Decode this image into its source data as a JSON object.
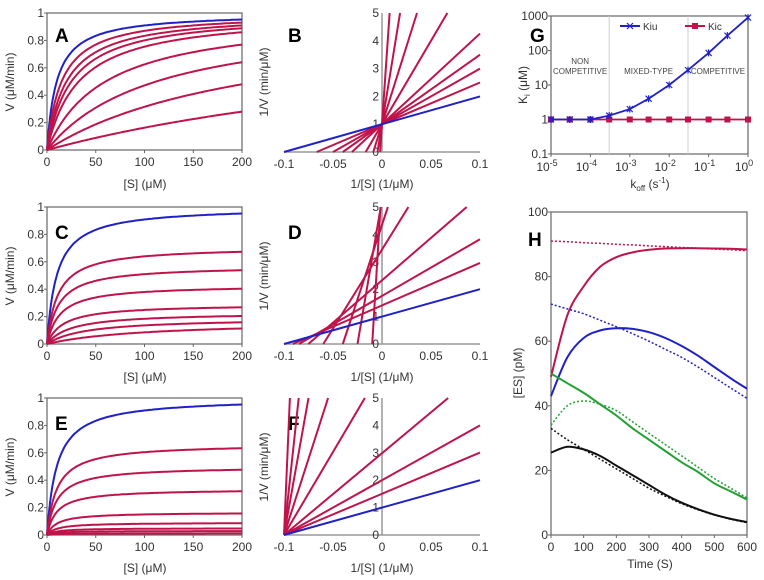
{
  "colors": {
    "control": "#2020c8",
    "inhibited": "#c0134a",
    "green": "#22a032",
    "black": "#111111",
    "frame": "#666666"
  },
  "chart_data": [
    {
      "id": "A",
      "panel_label": "A",
      "type": "line",
      "kind": "michaelis-menten",
      "xlabel": "[S] (μM)",
      "ylabel": "V (μM/min)",
      "xlim": [
        0,
        200
      ],
      "ylim": [
        0,
        1
      ],
      "xticks": [
        "0",
        "50",
        "100",
        "150",
        "200"
      ],
      "yticks": [
        "0",
        "0.2",
        "0.4",
        "0.6",
        "0.8",
        "1"
      ],
      "curves": [
        {
          "Vmax": 1,
          "Km": 10,
          "color": "control"
        },
        {
          "Vmax": 1,
          "Km": 15,
          "color": "inhibited"
        },
        {
          "Vmax": 1,
          "Km": 20,
          "color": "inhibited"
        },
        {
          "Vmax": 1,
          "Km": 25,
          "color": "inhibited"
        },
        {
          "Vmax": 1,
          "Km": 32.6,
          "color": "inhibited"
        },
        {
          "Vmax": 1,
          "Km": 60,
          "color": "inhibited"
        },
        {
          "Vmax": 1,
          "Km": 112,
          "color": "inhibited"
        },
        {
          "Vmax": 1,
          "Km": 217,
          "color": "inhibited"
        },
        {
          "Vmax": 1,
          "Km": 514,
          "color": "inhibited"
        }
      ]
    },
    {
      "id": "B",
      "panel_label": "B",
      "type": "line",
      "kind": "lineweaver-burk",
      "xlabel": "1/[S] (1/μM)",
      "ylabel": "1/V (min/μM)",
      "xlim": [
        -0.1,
        0.1
      ],
      "ylim": [
        0,
        5
      ],
      "xticks": [
        "-0.1",
        "-0.05",
        "0",
        "0.05",
        "0.1"
      ],
      "yticks": [
        "0",
        "1",
        "2",
        "3",
        "4",
        "5"
      ],
      "curves": [
        {
          "Vmax": 1,
          "Km": 10,
          "color": "control"
        },
        {
          "Vmax": 1,
          "Km": 15,
          "color": "inhibited"
        },
        {
          "Vmax": 1,
          "Km": 20,
          "color": "inhibited"
        },
        {
          "Vmax": 1,
          "Km": 25,
          "color": "inhibited"
        },
        {
          "Vmax": 1,
          "Km": 32.6,
          "color": "inhibited"
        },
        {
          "Vmax": 1,
          "Km": 60,
          "color": "inhibited"
        },
        {
          "Vmax": 1,
          "Km": 112,
          "color": "inhibited"
        },
        {
          "Vmax": 1,
          "Km": 217,
          "color": "inhibited"
        },
        {
          "Vmax": 1,
          "Km": 514,
          "color": "inhibited"
        }
      ]
    },
    {
      "id": "C",
      "panel_label": "C",
      "type": "line",
      "kind": "michaelis-menten",
      "xlabel": "[S] (μM)",
      "ylabel": "V (μM/min)",
      "xlim": [
        0,
        200
      ],
      "ylim": [
        0,
        1
      ],
      "xticks": [
        "0",
        "50",
        "100",
        "150",
        "200"
      ],
      "yticks": [
        "0",
        "0.2",
        "0.4",
        "0.6",
        "0.8",
        "1"
      ],
      "curves": [
        {
          "Vmax": 1,
          "Km": 10,
          "color": "control"
        },
        {
          "Vmax": 0.71,
          "Km": 11,
          "color": "inhibited"
        },
        {
          "Vmax": 0.57,
          "Km": 11.8,
          "color": "inhibited"
        },
        {
          "Vmax": 0.43,
          "Km": 13.3,
          "color": "inhibited"
        },
        {
          "Vmax": 0.29,
          "Km": 16.7,
          "color": "inhibited"
        },
        {
          "Vmax": 0.23,
          "Km": 25,
          "color": "inhibited"
        },
        {
          "Vmax": 0.19,
          "Km": 40,
          "color": "inhibited"
        },
        {
          "Vmax": 0.17,
          "Km": 100,
          "color": "inhibited"
        }
      ]
    },
    {
      "id": "D",
      "panel_label": "D",
      "type": "line",
      "kind": "lineweaver-burk",
      "xlabel": "1/[S] (1/μM)",
      "ylabel": "1/V (min/μM)",
      "xlim": [
        -0.1,
        0.1
      ],
      "ylim": [
        0,
        5
      ],
      "xticks": [
        "-0.1",
        "-0.05",
        "0",
        "0.05",
        "0.1"
      ],
      "yticks": [
        "0",
        "1",
        "2",
        "3",
        "4",
        "5"
      ],
      "curves": [
        {
          "Vmax": 1,
          "Km": 10,
          "color": "control"
        },
        {
          "Vmax": 0.71,
          "Km": 11,
          "color": "inhibited"
        },
        {
          "Vmax": 0.57,
          "Km": 11.8,
          "color": "inhibited"
        },
        {
          "Vmax": 0.43,
          "Km": 13.3,
          "color": "inhibited"
        },
        {
          "Vmax": 0.29,
          "Km": 16.7,
          "color": "inhibited"
        },
        {
          "Vmax": 0.23,
          "Km": 25,
          "color": "inhibited"
        },
        {
          "Vmax": 0.19,
          "Km": 40,
          "color": "inhibited"
        },
        {
          "Vmax": 0.17,
          "Km": 100,
          "color": "inhibited"
        }
      ]
    },
    {
      "id": "E",
      "panel_label": "E",
      "type": "line",
      "kind": "michaelis-menten",
      "xlabel": "[S] (μM)",
      "ylabel": "V (μM/min)",
      "xlim": [
        0,
        200
      ],
      "ylim": [
        0,
        1
      ],
      "xticks": [
        "0",
        "50",
        "100",
        "150",
        "200"
      ],
      "yticks": [
        "0",
        "0.2",
        "0.4",
        "0.6",
        "0.8",
        "1"
      ],
      "curves": [
        {
          "Vmax": 1,
          "Km": 10,
          "color": "control"
        },
        {
          "Vmax": 0.665,
          "Km": 10,
          "color": "inhibited"
        },
        {
          "Vmax": 0.5,
          "Km": 10,
          "color": "inhibited"
        },
        {
          "Vmax": 0.335,
          "Km": 10,
          "color": "inhibited"
        },
        {
          "Vmax": 0.165,
          "Km": 10,
          "color": "inhibited"
        },
        {
          "Vmax": 0.09,
          "Km": 10,
          "color": "inhibited"
        },
        {
          "Vmax": 0.05,
          "Km": 10,
          "color": "inhibited"
        },
        {
          "Vmax": 0.03,
          "Km": 10,
          "color": "inhibited"
        },
        {
          "Vmax": 0.012,
          "Km": 10,
          "color": "inhibited"
        }
      ]
    },
    {
      "id": "F",
      "panel_label": "F",
      "type": "line",
      "kind": "lineweaver-burk",
      "xlabel": "1/[S] (1/μM)",
      "ylabel": "1/V (min/μM)",
      "xlim": [
        -0.1,
        0.1
      ],
      "ylim": [
        0,
        5
      ],
      "xticks": [
        "-0.1",
        "-0.05",
        "0",
        "0.05",
        "0.1"
      ],
      "yticks": [
        "0",
        "1",
        "2",
        "3",
        "4",
        "5"
      ],
      "curves": [
        {
          "Vmax": 1,
          "Km": 10,
          "color": "control"
        },
        {
          "Vmax": 0.665,
          "Km": 10,
          "color": "inhibited"
        },
        {
          "Vmax": 0.5,
          "Km": 10,
          "color": "inhibited"
        },
        {
          "Vmax": 0.335,
          "Km": 10,
          "color": "inhibited"
        },
        {
          "Vmax": 0.165,
          "Km": 10,
          "color": "inhibited"
        },
        {
          "Vmax": 0.09,
          "Km": 10,
          "color": "inhibited"
        },
        {
          "Vmax": 0.05,
          "Km": 10,
          "color": "inhibited"
        },
        {
          "Vmax": 0.03,
          "Km": 10,
          "color": "inhibited"
        },
        {
          "Vmax": 0.012,
          "Km": 10,
          "color": "inhibited"
        }
      ]
    },
    {
      "id": "G",
      "panel_label": "G",
      "type": "line",
      "kind": "log-log",
      "xlabel": {
        "main": "k",
        "sub": "off",
        "rest": " (s",
        "sup": "-1",
        "end": ")"
      },
      "ylabel": {
        "main": "K",
        "sub": "i",
        "rest": " (μM)"
      },
      "xlim": [
        1e-05,
        1
      ],
      "ylim": [
        0.1,
        1000
      ],
      "xticks": {
        "base": "10",
        "exponents": [
          "-5",
          "-4",
          "-3",
          "-2",
          "-1",
          "0"
        ]
      },
      "yticks": [
        "0.1",
        "1",
        "10",
        "100",
        "1000"
      ],
      "x": [
        1e-05,
        3e-05,
        0.0001,
        0.0003,
        0.001,
        0.003,
        0.01,
        0.03,
        0.1,
        0.3,
        1
      ],
      "series": [
        {
          "name": "Kiu",
          "color": "control",
          "marker": "star",
          "values": [
            1,
            1,
            1,
            1.3,
            2,
            4,
            10,
            27,
            85,
            270,
            900
          ]
        },
        {
          "name": "Kic",
          "color": "inhibited",
          "marker": "square",
          "values": [
            1,
            1,
            1,
            1,
            1,
            1,
            1,
            1,
            1,
            1,
            1
          ]
        }
      ],
      "boundaries": [
        0.0003,
        0.03
      ],
      "regions": [
        {
          "lines": [
            "NON",
            "COMPETITIVE"
          ]
        },
        {
          "lines": [
            "MIXED-TYPE"
          ]
        },
        {
          "lines": [
            "COMPETITIVE"
          ]
        }
      ],
      "legend": "top-center"
    },
    {
      "id": "H",
      "panel_label": "H",
      "type": "line",
      "kind": "time-course",
      "xlabel": "Time (S)",
      "ylabel": "[ES] (pM)",
      "xlim": [
        0,
        600
      ],
      "ylim": [
        0,
        100
      ],
      "xticks": [
        "0",
        "100",
        "200",
        "300",
        "400",
        "500",
        "600"
      ],
      "yticks": [
        "0",
        "20",
        "40",
        "60",
        "80",
        "100"
      ],
      "x": [
        0,
        50,
        100,
        150,
        200,
        250,
        300,
        350,
        400,
        450,
        500,
        550,
        600
      ],
      "series": [
        {
          "name": "red solid",
          "color": "inhibited",
          "dash": false,
          "values": [
            49,
            68,
            77,
            83,
            86,
            87.5,
            88.3,
            88.7,
            88.8,
            88.8,
            88.7,
            88.6,
            88.4
          ]
        },
        {
          "name": "red dotted",
          "color": "inhibited",
          "dash": true,
          "values": [
            91,
            90.8,
            90.5,
            90.3,
            90,
            89.8,
            89.5,
            89.3,
            89,
            88.8,
            88.5,
            88.3,
            88
          ]
        },
        {
          "name": "blue solid",
          "color": "control",
          "dash": false,
          "values": [
            43,
            55,
            61,
            63.3,
            64,
            63.8,
            62.8,
            61,
            58.5,
            55.5,
            52,
            48.5,
            45.3
          ]
        },
        {
          "name": "blue dotted",
          "color": "control",
          "dash": true,
          "values": [
            71.5,
            70,
            68.5,
            66.5,
            64.5,
            62.3,
            60,
            57.5,
            55,
            52,
            48.8,
            45.5,
            42.3
          ]
        },
        {
          "name": "green solid",
          "color": "green",
          "dash": false,
          "values": [
            50,
            47,
            44,
            40.5,
            37,
            33,
            29.5,
            26,
            22.5,
            19.5,
            16,
            13.5,
            11
          ]
        },
        {
          "name": "green dotted",
          "color": "green",
          "dash": true,
          "values": [
            34,
            40,
            41.5,
            40.5,
            38.5,
            35,
            31.5,
            28,
            24.5,
            21,
            17.5,
            14.5,
            11.5
          ]
        },
        {
          "name": "black solid",
          "color": "black",
          "dash": false,
          "values": [
            25.5,
            27.3,
            26.5,
            24.5,
            21.5,
            18.5,
            15.5,
            12.5,
            10,
            8,
            6.3,
            5,
            4
          ]
        },
        {
          "name": "black dotted",
          "color": "black",
          "dash": true,
          "values": [
            33,
            29.5,
            26.5,
            23.5,
            20.5,
            17.5,
            14.5,
            12,
            9.7,
            7.8,
            6.2,
            4.9,
            3.8
          ]
        }
      ]
    }
  ]
}
